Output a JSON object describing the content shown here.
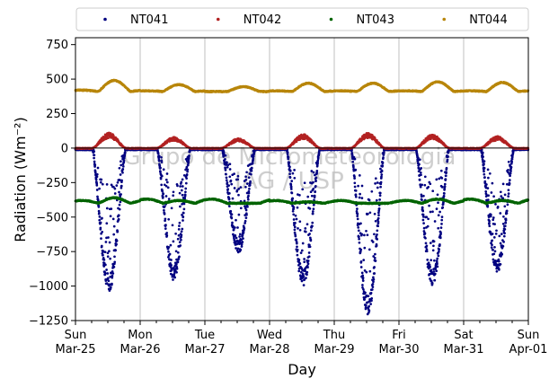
{
  "chart_data": {
    "type": "scatter",
    "title": "",
    "xlabel": "Day",
    "ylabel": "Radiation",
    "ylabel_unit": "(Wm⁻²)",
    "ylim": [
      -1250,
      800
    ],
    "yticks": [
      -1250,
      -1000,
      -750,
      -500,
      -250,
      0,
      250,
      500,
      750
    ],
    "xlim": [
      0,
      7
    ],
    "xticks": [
      {
        "day": "Sun",
        "date": "Mar-25"
      },
      {
        "day": "Mon",
        "date": "Mar-26"
      },
      {
        "day": "Tue",
        "date": "Mar-27"
      },
      {
        "day": "Wed",
        "date": "Mar-28"
      },
      {
        "day": "Thu",
        "date": "Mar-29"
      },
      {
        "day": "Fri",
        "date": "Mar-30"
      },
      {
        "day": "Sat",
        "date": "Mar-31"
      },
      {
        "day": "Sun",
        "date": "Apr-01"
      }
    ],
    "grid": "x",
    "legend_placement": "top",
    "watermark": [
      "Grupo de Micrometeorologia",
      "IAG / USP"
    ],
    "series": [
      {
        "name": "NT041",
        "color": "#000080",
        "daily_min": [
          -1040,
          -960,
          -760,
          -1000,
          -1210,
          -1000,
          -900
        ],
        "daily_max": [
          0,
          0,
          0,
          0,
          0,
          0,
          0
        ]
      },
      {
        "name": "NT042",
        "color": "#b22222",
        "daily_min": [
          0,
          0,
          0,
          0,
          0,
          0,
          0
        ],
        "daily_max": [
          110,
          80,
          70,
          100,
          110,
          100,
          85
        ]
      },
      {
        "name": "NT043",
        "color": "#006400",
        "baseline": -400,
        "daily_min": [
          -420,
          -430,
          -430,
          -420,
          -420,
          -420,
          -430
        ],
        "daily_max": [
          -360,
          -380,
          -400,
          -390,
          -400,
          -370,
          -380
        ]
      },
      {
        "name": "NT044",
        "color": "#b8860b",
        "baseline": 410,
        "daily_min": [
          400,
          405,
          410,
          405,
          405,
          405,
          405
        ],
        "daily_max": [
          490,
          460,
          445,
          470,
          470,
          480,
          475
        ]
      }
    ]
  }
}
